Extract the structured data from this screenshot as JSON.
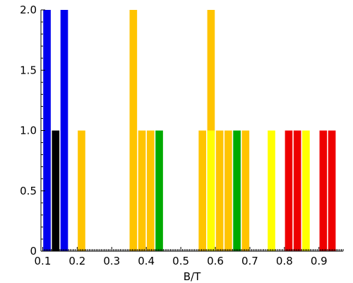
{
  "chart_data": {
    "type": "bar",
    "title": "",
    "xlabel": "B/T",
    "ylabel": "",
    "xlim": [
      0.095,
      0.97
    ],
    "ylim": [
      0,
      2.0
    ],
    "x_ticks": [
      "0.1",
      "0.2",
      "0.3",
      "0.4",
      "0.5",
      "0.6",
      "0.7",
      "0.8",
      "0.9"
    ],
    "y_ticks": [
      "0",
      "0.5",
      "1.0",
      "1.5",
      "2.0"
    ],
    "x_tick_values": [
      0.1,
      0.2,
      0.3,
      0.4,
      0.5,
      0.6,
      0.7,
      0.8,
      0.9
    ],
    "y_tick_values": [
      0,
      0.5,
      1.0,
      1.5,
      2.0
    ],
    "grid": false,
    "bin_width": 0.025,
    "bars": [
      {
        "x": 0.1125,
        "value": 2,
        "color": "#0000ee"
      },
      {
        "x": 0.1375,
        "value": 1,
        "color": "#000000"
      },
      {
        "x": 0.1625,
        "value": 2,
        "color": "#0000ee"
      },
      {
        "x": 0.2125,
        "value": 1,
        "color": "#ffc400"
      },
      {
        "x": 0.3625,
        "value": 2,
        "color": "#ffc400"
      },
      {
        "x": 0.3875,
        "value": 1,
        "color": "#ffc400"
      },
      {
        "x": 0.4125,
        "value": 1,
        "color": "#ffc400"
      },
      {
        "x": 0.4375,
        "value": 1,
        "color": "#00aa00"
      },
      {
        "x": 0.5625,
        "value": 1,
        "color": "#ffc400"
      },
      {
        "x": 0.5875,
        "value": 2,
        "color": "#ffc400"
      },
      {
        "x": 0.5875,
        "value": 1,
        "color": "#ffff00"
      },
      {
        "x": 0.6125,
        "value": 1,
        "color": "#ffc400"
      },
      {
        "x": 0.6375,
        "value": 1,
        "color": "#ffc400"
      },
      {
        "x": 0.6625,
        "value": 1,
        "color": "#00aa00"
      },
      {
        "x": 0.6875,
        "value": 1,
        "color": "#ffc400"
      },
      {
        "x": 0.7625,
        "value": 1,
        "color": "#ffff00"
      },
      {
        "x": 0.8125,
        "value": 1,
        "color": "#ee0000"
      },
      {
        "x": 0.8375,
        "value": 1,
        "color": "#ee0000"
      },
      {
        "x": 0.8625,
        "value": 1,
        "color": "#ffff00"
      },
      {
        "x": 0.9125,
        "value": 1,
        "color": "#ee0000"
      },
      {
        "x": 0.9375,
        "value": 1,
        "color": "#ee0000"
      }
    ]
  }
}
